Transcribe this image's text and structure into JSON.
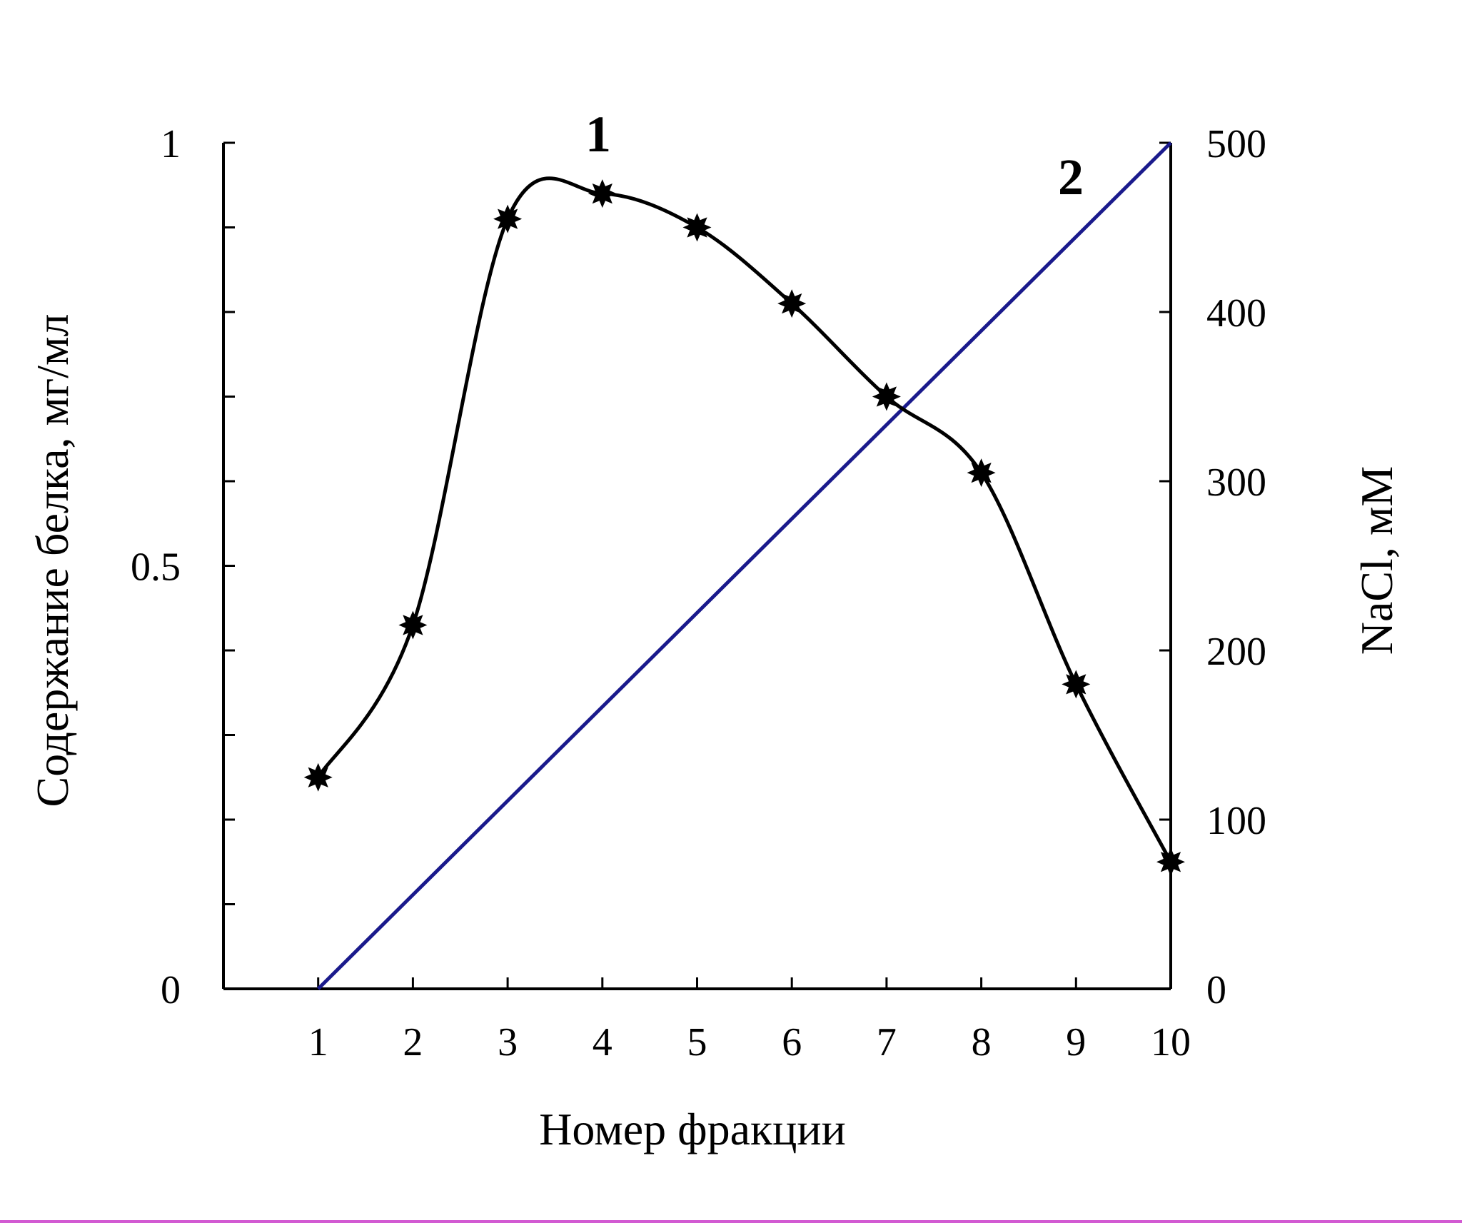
{
  "chart_data": {
    "type": "line",
    "x": [
      1,
      2,
      3,
      4,
      5,
      6,
      7,
      8,
      9,
      10
    ],
    "xlabel": "Номер фракции",
    "ylabel": "Содержание белка, мг/мл",
    "y2label": "NaCl, мМ",
    "xlim": [
      0,
      10
    ],
    "ylim": [
      0,
      1
    ],
    "y2lim": [
      0,
      500
    ],
    "x_ticks": [
      "1",
      "2",
      "3",
      "4",
      "5",
      "6",
      "7",
      "8",
      "9",
      "10"
    ],
    "y_ticks": [
      "0",
      "0.5",
      "1"
    ],
    "y2_ticks": [
      "0",
      "100",
      "200",
      "300",
      "400",
      "500"
    ],
    "series": [
      {
        "name": "1",
        "axis": "left",
        "color": "#000000",
        "marker": "star",
        "values": [
          0.25,
          0.43,
          0.91,
          0.94,
          0.9,
          0.81,
          0.7,
          0.61,
          0.36,
          0.15
        ]
      },
      {
        "name": "2",
        "axis": "right",
        "color": "#1a1a8c",
        "marker": "none",
        "x": [
          1,
          10
        ],
        "values": [
          0,
          500
        ]
      }
    ],
    "grid": false,
    "legend": "inline labels"
  }
}
